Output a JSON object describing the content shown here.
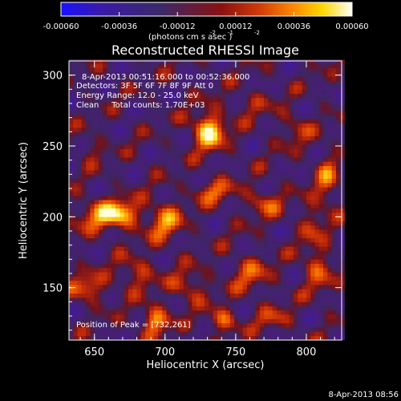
{
  "chart_data": {
    "type": "heatmap",
    "title": "Reconstructed RHESSI Image",
    "xlabel": "Heliocentric X (arcsec)",
    "ylabel": "Heliocentric Y (arcsec)",
    "xlim": [
      632,
      825
    ],
    "ylim": [
      113,
      310
    ],
    "xticks": [
      650,
      700,
      750,
      800
    ],
    "xtick_labels": [
      "650",
      "700",
      "750",
      "800"
    ],
    "yticks": [
      150,
      200,
      250,
      300
    ],
    "ytick_labels": [
      "150",
      "200",
      "250",
      "300"
    ],
    "colorbar": {
      "unit_text": "(photons cm  s  asec )",
      "unit_exponents": [
        "-2",
        "-1",
        "-2"
      ],
      "range": [
        -0.0006,
        0.0006
      ],
      "ticks": [
        -0.0006,
        -0.00036,
        -0.00012,
        0.00012,
        0.00036,
        0.0006
      ],
      "tick_labels": [
        "-0.00060",
        "-0.00036",
        "-0.00012",
        "0.00012",
        "0.00036",
        "0.00060"
      ],
      "colors": [
        "#1a10ff",
        "#3a1aa8",
        "#3a2a6a",
        "#8a1010",
        "#d03a08",
        "#ff8a00",
        "#ffd800",
        "#ffffff"
      ]
    },
    "annotations": [
      "8-Apr-2013 00:51:16.000 to 00:52:36.000",
      "Detectors: 3F 5F 6F 7F 8F 9F Att 0",
      "Energy Range: 12.0 - 25.0 keV",
      "Clean     Total counts: 1.70E+03",
      "Position of Peak = [732,261]"
    ],
    "peak_position": [
      732,
      261
    ],
    "sources": [
      {
        "x": 731,
        "y": 261,
        "sx": 8,
        "sy": 9,
        "a": 1.0
      },
      {
        "x": 669,
        "y": 202,
        "sx": 9,
        "sy": 7,
        "a": 0.82
      },
      {
        "x": 651,
        "y": 201,
        "sx": 10,
        "sy": 8,
        "a": 0.55
      },
      {
        "x": 700,
        "y": 197,
        "sx": 9,
        "sy": 10,
        "a": 0.62
      },
      {
        "x": 735,
        "y": 218,
        "sx": 10,
        "sy": 6,
        "a": 0.5
      },
      {
        "x": 770,
        "y": 210,
        "sx": 9,
        "sy": 7,
        "a": 0.45
      },
      {
        "x": 645,
        "y": 150,
        "sx": 9,
        "sy": 7,
        "a": 0.55
      },
      {
        "x": 680,
        "y": 160,
        "sx": 9,
        "sy": 8,
        "a": 0.45
      },
      {
        "x": 717,
        "y": 151,
        "sx": 9,
        "sy": 8,
        "a": 0.45
      },
      {
        "x": 693,
        "y": 127,
        "sx": 7,
        "sy": 7,
        "a": 0.75
      },
      {
        "x": 741,
        "y": 127,
        "sx": 7,
        "sy": 6,
        "a": 0.6
      },
      {
        "x": 760,
        "y": 160,
        "sx": 10,
        "sy": 9,
        "a": 0.45
      },
      {
        "x": 808,
        "y": 164,
        "sx": 8,
        "sy": 12,
        "a": 0.45
      },
      {
        "x": 815,
        "y": 225,
        "sx": 6,
        "sy": 14,
        "a": 0.5
      },
      {
        "x": 648,
        "y": 248,
        "sx": 6,
        "sy": 6,
        "a": 0.3
      },
      {
        "x": 760,
        "y": 280,
        "sx": 10,
        "sy": 6,
        "a": 0.3
      },
      {
        "x": 792,
        "y": 262,
        "sx": 8,
        "sy": 8,
        "a": 0.35
      },
      {
        "x": 804,
        "y": 196,
        "sx": 6,
        "sy": 10,
        "a": 0.35
      },
      {
        "x": 776,
        "y": 128,
        "sx": 10,
        "sy": 6,
        "a": 0.35
      }
    ]
  },
  "footer": {
    "timestamp": "8-Apr-2013 08:56"
  }
}
